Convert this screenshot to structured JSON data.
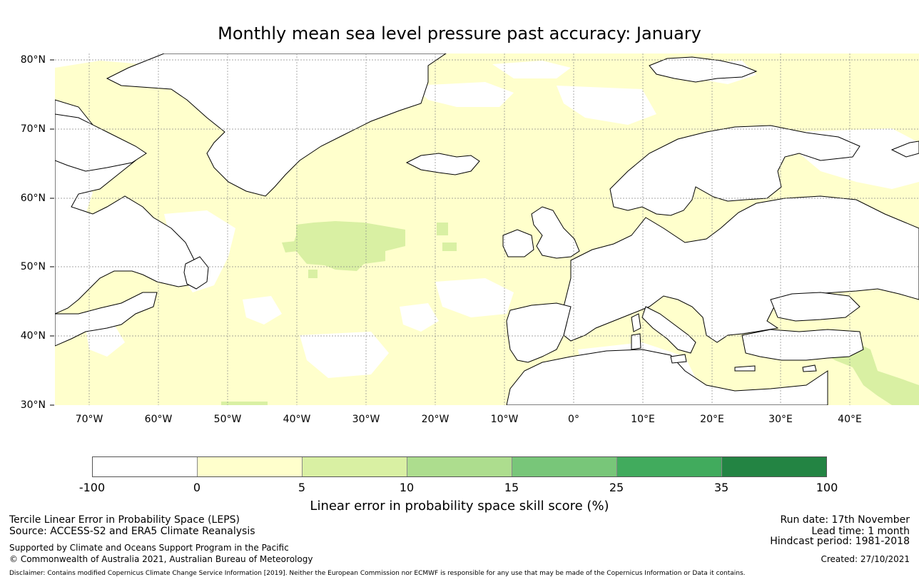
{
  "title": "Monthly mean sea level pressure past accuracy: January",
  "map": {
    "lat_labels": [
      "80°N",
      "70°N",
      "60°N",
      "50°N",
      "40°N",
      "30°N"
    ],
    "lon_labels": [
      "70°W",
      "60°W",
      "50°W",
      "40°W",
      "30°W",
      "20°W",
      "10°W",
      "0°",
      "10°E",
      "20°E",
      "30°E",
      "40°E"
    ],
    "colors": {
      "ocean_base": "#ffffcc",
      "land": "#ffffff",
      "no_skill": "#ffffff",
      "skill_5_10": "#d9f0a3",
      "grid": "#888888",
      "coast": "#000000"
    }
  },
  "colorbar": {
    "ticks": [
      "-100",
      "0",
      "5",
      "10",
      "15",
      "25",
      "35",
      "100"
    ],
    "colors": [
      "#ffffff",
      "#ffffcc",
      "#d9f0a3",
      "#addd8e",
      "#78c679",
      "#41ab5d",
      "#238443"
    ],
    "label": "Linear error in probability space skill score (%)"
  },
  "footer": {
    "left_line1": "Tercile Linear Error in Probability Space (LEPS)",
    "left_line2": "Source: ACCESS-S2 and ERA5 Climate Reanalysis",
    "left_line3": "Supported by Climate and Oceans Support Program in the Pacific",
    "left_line4": "© Commonwealth of Australia 2021, Australian Bureau of Meteorology",
    "right_line1": "Run date: 17th November",
    "right_line2": "Lead time: 1 month",
    "right_line3": "Hindcast period: 1981-2018",
    "right_line4": "Created: 27/10/2021",
    "disclaimer": "Disclaimer: Contains modified Copernicus Climate Change Service Information [2019]. Neither the European Commission nor ECMWF is responsible for any use that may be made of the Copernicus Information or Data it contains."
  }
}
